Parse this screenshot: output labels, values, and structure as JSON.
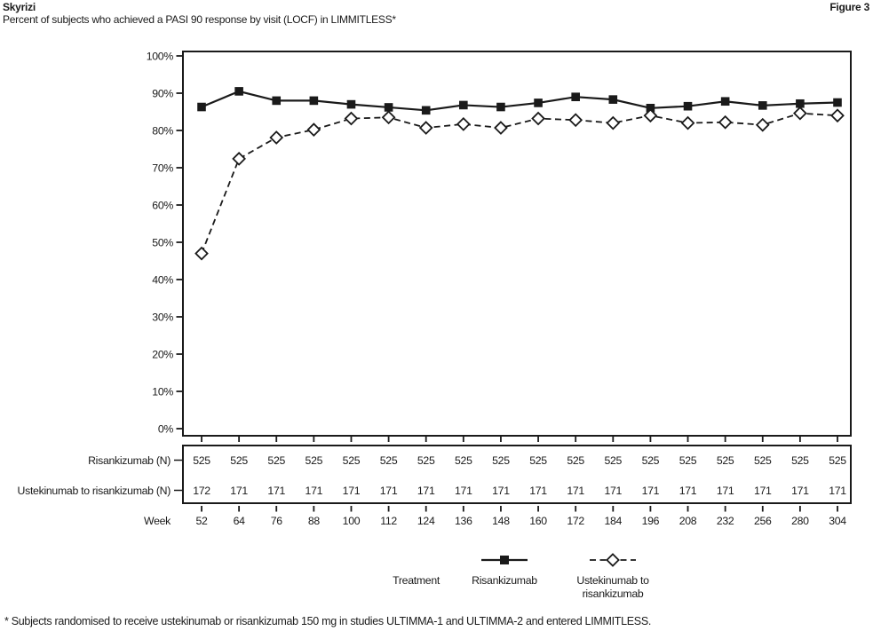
{
  "header": {
    "product": "Skyrizi",
    "subtitle": "Percent of subjects who achieved a PASI 90 response by visit (LOCF) in LIMMITLESS*",
    "figure_label": "Figure 3"
  },
  "chart_data": {
    "type": "line",
    "title": "Percent of subjects who achieved a PASI 90 response by visit (LOCF) in LIMMITLESS*",
    "xlabel": "Week",
    "x": [
      52,
      64,
      76,
      88,
      100,
      112,
      124,
      136,
      148,
      160,
      172,
      184,
      196,
      208,
      232,
      256,
      280,
      304
    ],
    "ylim": [
      0,
      100
    ],
    "ytick_labels": [
      "0%",
      "10%",
      "20%",
      "30%",
      "40%",
      "50%",
      "60%",
      "70%",
      "80%",
      "90%",
      "100%"
    ],
    "grid": false,
    "legend_position": "bottom",
    "series": [
      {
        "name": "Risankizumab",
        "line_style": "solid",
        "marker": "filled-square",
        "color": "#1a1a1a",
        "values": [
          86.3,
          90.5,
          88.0,
          88.0,
          87.0,
          86.2,
          85.4,
          86.8,
          86.3,
          87.4,
          89.0,
          88.3,
          86.0,
          86.5,
          87.8,
          86.7,
          87.2,
          87.5
        ]
      },
      {
        "name": "Ustekinumab to risankizumab",
        "line_style": "dashed",
        "marker": "open-diamond",
        "color": "#1a1a1a",
        "values": [
          47.0,
          72.4,
          78.1,
          80.2,
          83.2,
          83.5,
          80.7,
          81.7,
          80.7,
          83.2,
          82.8,
          82.0,
          84.0,
          82.0,
          82.2,
          81.5,
          84.6,
          84.0
        ]
      }
    ]
  },
  "table": {
    "rows": [
      {
        "label": "Risankizumab (N)",
        "values": [
          525,
          525,
          525,
          525,
          525,
          525,
          525,
          525,
          525,
          525,
          525,
          525,
          525,
          525,
          525,
          525,
          525,
          525
        ]
      },
      {
        "label": "Ustekinumab to risankizumab (N)",
        "values": [
          172,
          171,
          171,
          171,
          171,
          171,
          171,
          171,
          171,
          171,
          171,
          171,
          171,
          171,
          171,
          171,
          171,
          171
        ]
      }
    ],
    "week_label": "Week"
  },
  "legend": {
    "title": "Treatment",
    "items": [
      {
        "label_lines": [
          "Risankizumab"
        ],
        "marker": "filled-square",
        "line_style": "solid"
      },
      {
        "label_lines": [
          "Ustekinumab to",
          "risankizumab"
        ],
        "marker": "open-diamond",
        "line_style": "dashed"
      }
    ]
  },
  "footnote": "* Subjects randomised to receive ustekinumab or risankizumab 150 mg in studies ULTIMMA-1 and ULTIMMA-2 and entered LIMMITLESS.",
  "colors": {
    "ink": "#1a1a1a",
    "background": "#ffffff"
  }
}
